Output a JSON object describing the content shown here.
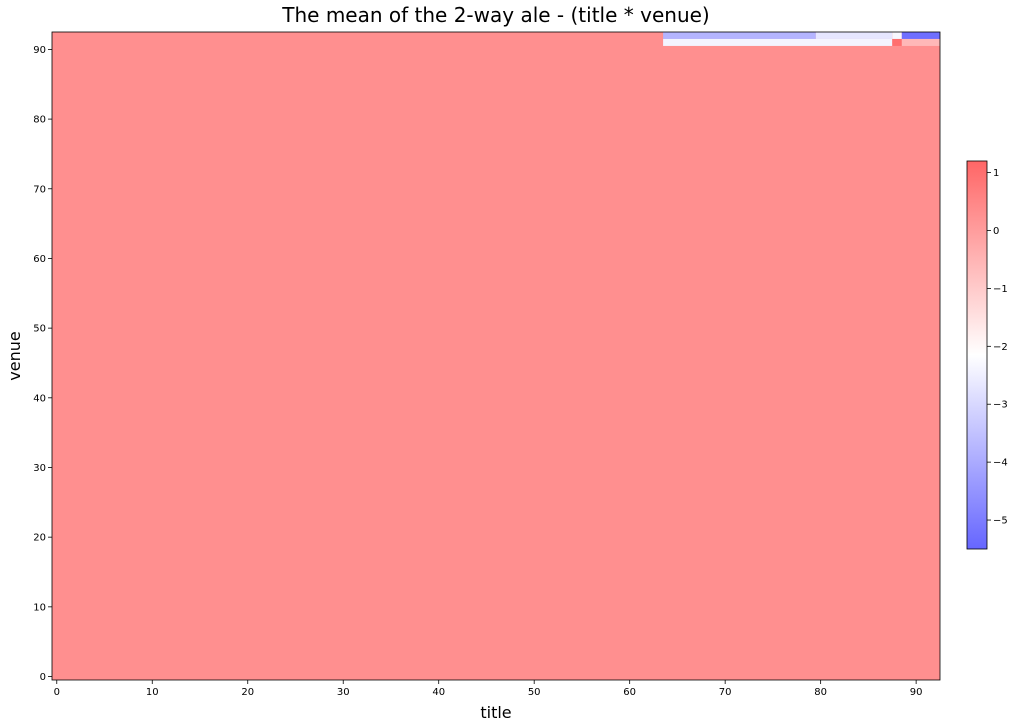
{
  "chart_data": {
    "type": "heatmap",
    "title": "The mean of the 2-way ale - (title * venue)",
    "xlabel": "title",
    "ylabel": "venue",
    "xlim": [
      -0.5,
      92.5
    ],
    "ylim": [
      -0.5,
      92.5
    ],
    "x_ticks": [
      0,
      10,
      20,
      30,
      40,
      50,
      60,
      70,
      80,
      90
    ],
    "y_ticks": [
      0,
      10,
      20,
      30,
      40,
      50,
      60,
      70,
      80,
      90
    ],
    "background_value": 0.3,
    "cells": [
      {
        "x": [
          63.5,
          79.5
        ],
        "y": [
          91.5,
          92.5
        ],
        "value": -3.8
      },
      {
        "x": [
          79.5,
          87.5
        ],
        "y": [
          91.5,
          92.5
        ],
        "value": -2.7
      },
      {
        "x": [
          87.5,
          88.5
        ],
        "y": [
          91.5,
          92.5
        ],
        "value": -2.3
      },
      {
        "x": [
          88.5,
          92.5
        ],
        "y": [
          91.5,
          92.5
        ],
        "value": -5.3
      },
      {
        "x": [
          63.5,
          87.5
        ],
        "y": [
          90.5,
          91.5
        ],
        "value": -2.4
      },
      {
        "x": [
          87.5,
          88.5
        ],
        "y": [
          90.5,
          91.5
        ],
        "value": 1.0
      },
      {
        "x": [
          88.5,
          92.5
        ],
        "y": [
          90.5,
          91.5
        ],
        "value": -0.6
      }
    ],
    "colorbar": {
      "colormap": "bwr",
      "alpha": 0.6,
      "vmin": -5.5,
      "vmax": 1.2,
      "ticks": [
        1,
        0,
        -1,
        -2,
        -3,
        -4,
        -5
      ],
      "tick_labels": [
        "1",
        "0",
        "−1",
        "−2",
        "−3",
        "−4",
        "−5"
      ]
    }
  }
}
